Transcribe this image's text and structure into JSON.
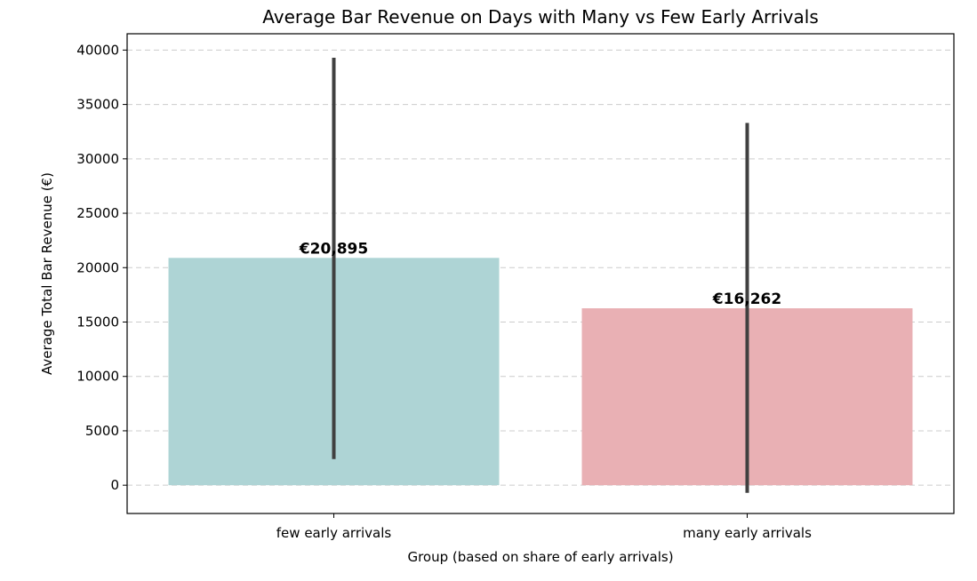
{
  "chart_data": {
    "type": "bar",
    "title": "Average Bar Revenue on Days with Many vs Few Early Arrivals",
    "xlabel": "Group (based on share of early arrivals)",
    "ylabel": "Average Total Bar Revenue (€)",
    "ylim": [
      -2600,
      41500
    ],
    "yticks": [
      0,
      5000,
      10000,
      15000,
      20000,
      25000,
      30000,
      35000,
      40000
    ],
    "grid": true,
    "categories": [
      "few early arrivals",
      "many early arrivals"
    ],
    "values": [
      20895,
      16262
    ],
    "value_labels": [
      "€20,895",
      "€16,262"
    ],
    "error_bars": [
      [
        2400,
        39300
      ],
      [
        -700,
        33300
      ]
    ],
    "colors": [
      "#aed4d5",
      "#e9b0b4"
    ],
    "error_bar_color": "#404040"
  }
}
